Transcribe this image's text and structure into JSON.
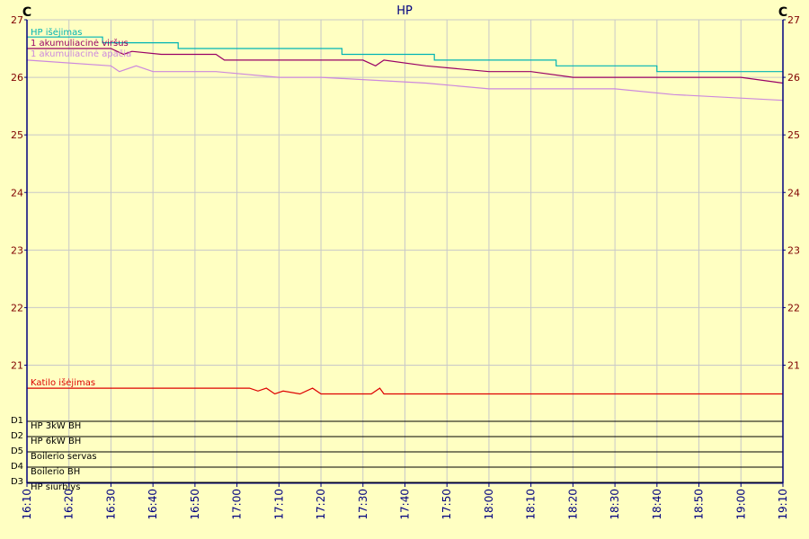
{
  "chart_data": {
    "type": "line",
    "title": "HP",
    "y_unit_left": "C",
    "y_unit_right": "C",
    "ylim": [
      20.3,
      27
    ],
    "y_ticks": [
      "27",
      "26",
      "25",
      "24",
      "23",
      "22",
      "21"
    ],
    "x_ticks": [
      "16:10",
      "16:20",
      "16:30",
      "16:40",
      "16:50",
      "17:00",
      "17:10",
      "17:20",
      "17:30",
      "17:40",
      "17:50",
      "18:00",
      "18:10",
      "18:20",
      "18:30",
      "18:40",
      "18:50",
      "19:00",
      "19:10"
    ],
    "xlim": [
      "16:10",
      "19:10"
    ],
    "grid": true,
    "series": [
      {
        "name": "HP išėjimas",
        "color": "#00b4b4",
        "x": [
          "16:10",
          "16:28",
          "16:28",
          "16:46",
          "16:46",
          "17:25",
          "17:25",
          "17:47",
          "17:47",
          "18:16",
          "18:16",
          "18:40",
          "18:40",
          "19:10"
        ],
        "y": [
          26.7,
          26.7,
          26.6,
          26.6,
          26.5,
          26.5,
          26.4,
          26.4,
          26.3,
          26.3,
          26.2,
          26.2,
          26.1,
          26.1
        ]
      },
      {
        "name": "1 akumuliacinė viršus",
        "color": "#990066",
        "x": [
          "16:10",
          "16:30",
          "16:33",
          "16:35",
          "16:42",
          "16:55",
          "16:57",
          "17:00",
          "17:20",
          "17:30",
          "17:33",
          "17:35",
          "17:45",
          "18:00",
          "18:10",
          "18:20",
          "18:30",
          "18:40",
          "19:00",
          "19:10"
        ],
        "y": [
          26.5,
          26.5,
          26.4,
          26.45,
          26.4,
          26.4,
          26.3,
          26.3,
          26.3,
          26.3,
          26.2,
          26.3,
          26.2,
          26.1,
          26.1,
          26.0,
          26.0,
          26.0,
          26.0,
          25.9
        ]
      },
      {
        "name": "1 akumuliacinė apačia",
        "color": "#cc88dd",
        "x": [
          "16:10",
          "16:30",
          "16:32",
          "16:36",
          "16:40",
          "16:55",
          "17:10",
          "17:20",
          "17:45",
          "18:00",
          "18:30",
          "18:44",
          "19:10"
        ],
        "y": [
          26.3,
          26.2,
          26.1,
          26.2,
          26.1,
          26.1,
          26.0,
          26.0,
          25.9,
          25.8,
          25.8,
          25.7,
          25.6
        ]
      },
      {
        "name": "Katilo išėjimas",
        "color": "#dd0000",
        "x": [
          "16:10",
          "17:03",
          "17:05",
          "17:07",
          "17:09",
          "17:11",
          "17:15",
          "17:18",
          "17:20",
          "17:22",
          "17:32",
          "17:34",
          "17:35",
          "19:10"
        ],
        "y": [
          20.6,
          20.6,
          20.55,
          20.6,
          20.5,
          20.55,
          20.5,
          20.6,
          20.5,
          20.5,
          20.5,
          20.6,
          20.5,
          20.5
        ]
      }
    ],
    "digital_rows": [
      {
        "code": "D1",
        "label": "HP 3kW BH"
      },
      {
        "code": "D2",
        "label": "HP 6kW BH"
      },
      {
        "code": "D5",
        "label": "Boilerio servas"
      },
      {
        "code": "D4",
        "label": "Boilerio BH"
      },
      {
        "code": "D3",
        "label": "HP siurblys"
      }
    ]
  },
  "colors": {
    "background": "#ffffc2",
    "grid": "#c8c8c8",
    "axis": "#000080",
    "tick_text_left": "#800000",
    "tick_text_right": "#800000",
    "time_text": "#000080"
  }
}
